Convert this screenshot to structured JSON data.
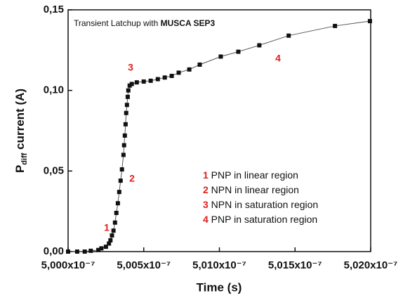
{
  "chart_data": {
    "type": "scatter",
    "title": {
      "text": "Transient Latchup with ",
      "bold": "MUSCA SEP3"
    },
    "xlabel": "Time (s)",
    "ylabel": {
      "main": "P",
      "sub": "diff",
      "rest": " current (A)"
    },
    "color": "#111111",
    "line_color": "#555555",
    "x": [
      5e-07,
      5.0006e-07,
      5.0011e-07,
      5.0015e-07,
      5.002e-07,
      5.0022e-07,
      5.0025e-07,
      5.0027e-07,
      5.0028e-07,
      5.0029e-07,
      5.003e-07,
      5.0031e-07,
      5.00319e-07,
      5.00329e-07,
      5.00338e-07,
      5.00347e-07,
      5.00356e-07,
      5.00366e-07,
      5.0037e-07,
      5.00375e-07,
      5.0038e-07,
      5.00384e-07,
      5.00389e-07,
      5.00394e-07,
      5.00398e-07,
      5.00407e-07,
      5.00421e-07,
      5.00454e-07,
      5.005e-07,
      5.00546e-07,
      5.00593e-07,
      5.00639e-07,
      5.00685e-07,
      5.00731e-07,
      5.00801e-07,
      5.0087e-07,
      5.01009e-07,
      5.01125e-07,
      5.01264e-07,
      5.01458e-07,
      5.01764e-07,
      5.01995e-07
    ],
    "values": [
      0,
      0,
      0,
      0.0005,
      0.001,
      0.002,
      0.003,
      0.005,
      0.007,
      0.01,
      0.013,
      0.018,
      0.024,
      0.03,
      0.037,
      0.044,
      0.051,
      0.06,
      0.066,
      0.072,
      0.079,
      0.086,
      0.091,
      0.096,
      0.1,
      0.103,
      0.104,
      0.105,
      0.1055,
      0.106,
      0.107,
      0.108,
      0.109,
      0.111,
      0.113,
      0.116,
      0.121,
      0.124,
      0.128,
      0.134,
      0.14,
      0.143
    ],
    "xlim": [
      5e-07,
      5.02e-07
    ],
    "xticks": [
      {
        "value": 5e-07,
        "label": "5,000x10⁻⁷"
      },
      {
        "value": 5.005e-07,
        "label": "5,005x10⁻⁷"
      },
      {
        "value": 5.01e-07,
        "label": "5,010x10⁻⁷"
      },
      {
        "value": 5.015e-07,
        "label": "5,015x10⁻⁷"
      },
      {
        "value": 5.02e-07,
        "label": "5,020x10⁻⁷"
      }
    ],
    "ylim": [
      0,
      0.15
    ],
    "yticks": [
      {
        "value": 0,
        "label": "0,00"
      },
      {
        "value": 0.05,
        "label": "0,05"
      },
      {
        "value": 0.1,
        "label": "0,10"
      },
      {
        "value": 0.15,
        "label": "0,15"
      }
    ],
    "annotation_color": "#e02020",
    "annotations": [
      "1",
      "2",
      "3",
      "4"
    ],
    "regions": [
      {
        "number": "1",
        "text": " PNP in linear region"
      },
      {
        "number": "2",
        "text": " NPN in linear region"
      },
      {
        "number": "3",
        "text": " NPN in saturation region"
      },
      {
        "number": "4",
        "text": " PNP in saturation region"
      }
    ]
  }
}
